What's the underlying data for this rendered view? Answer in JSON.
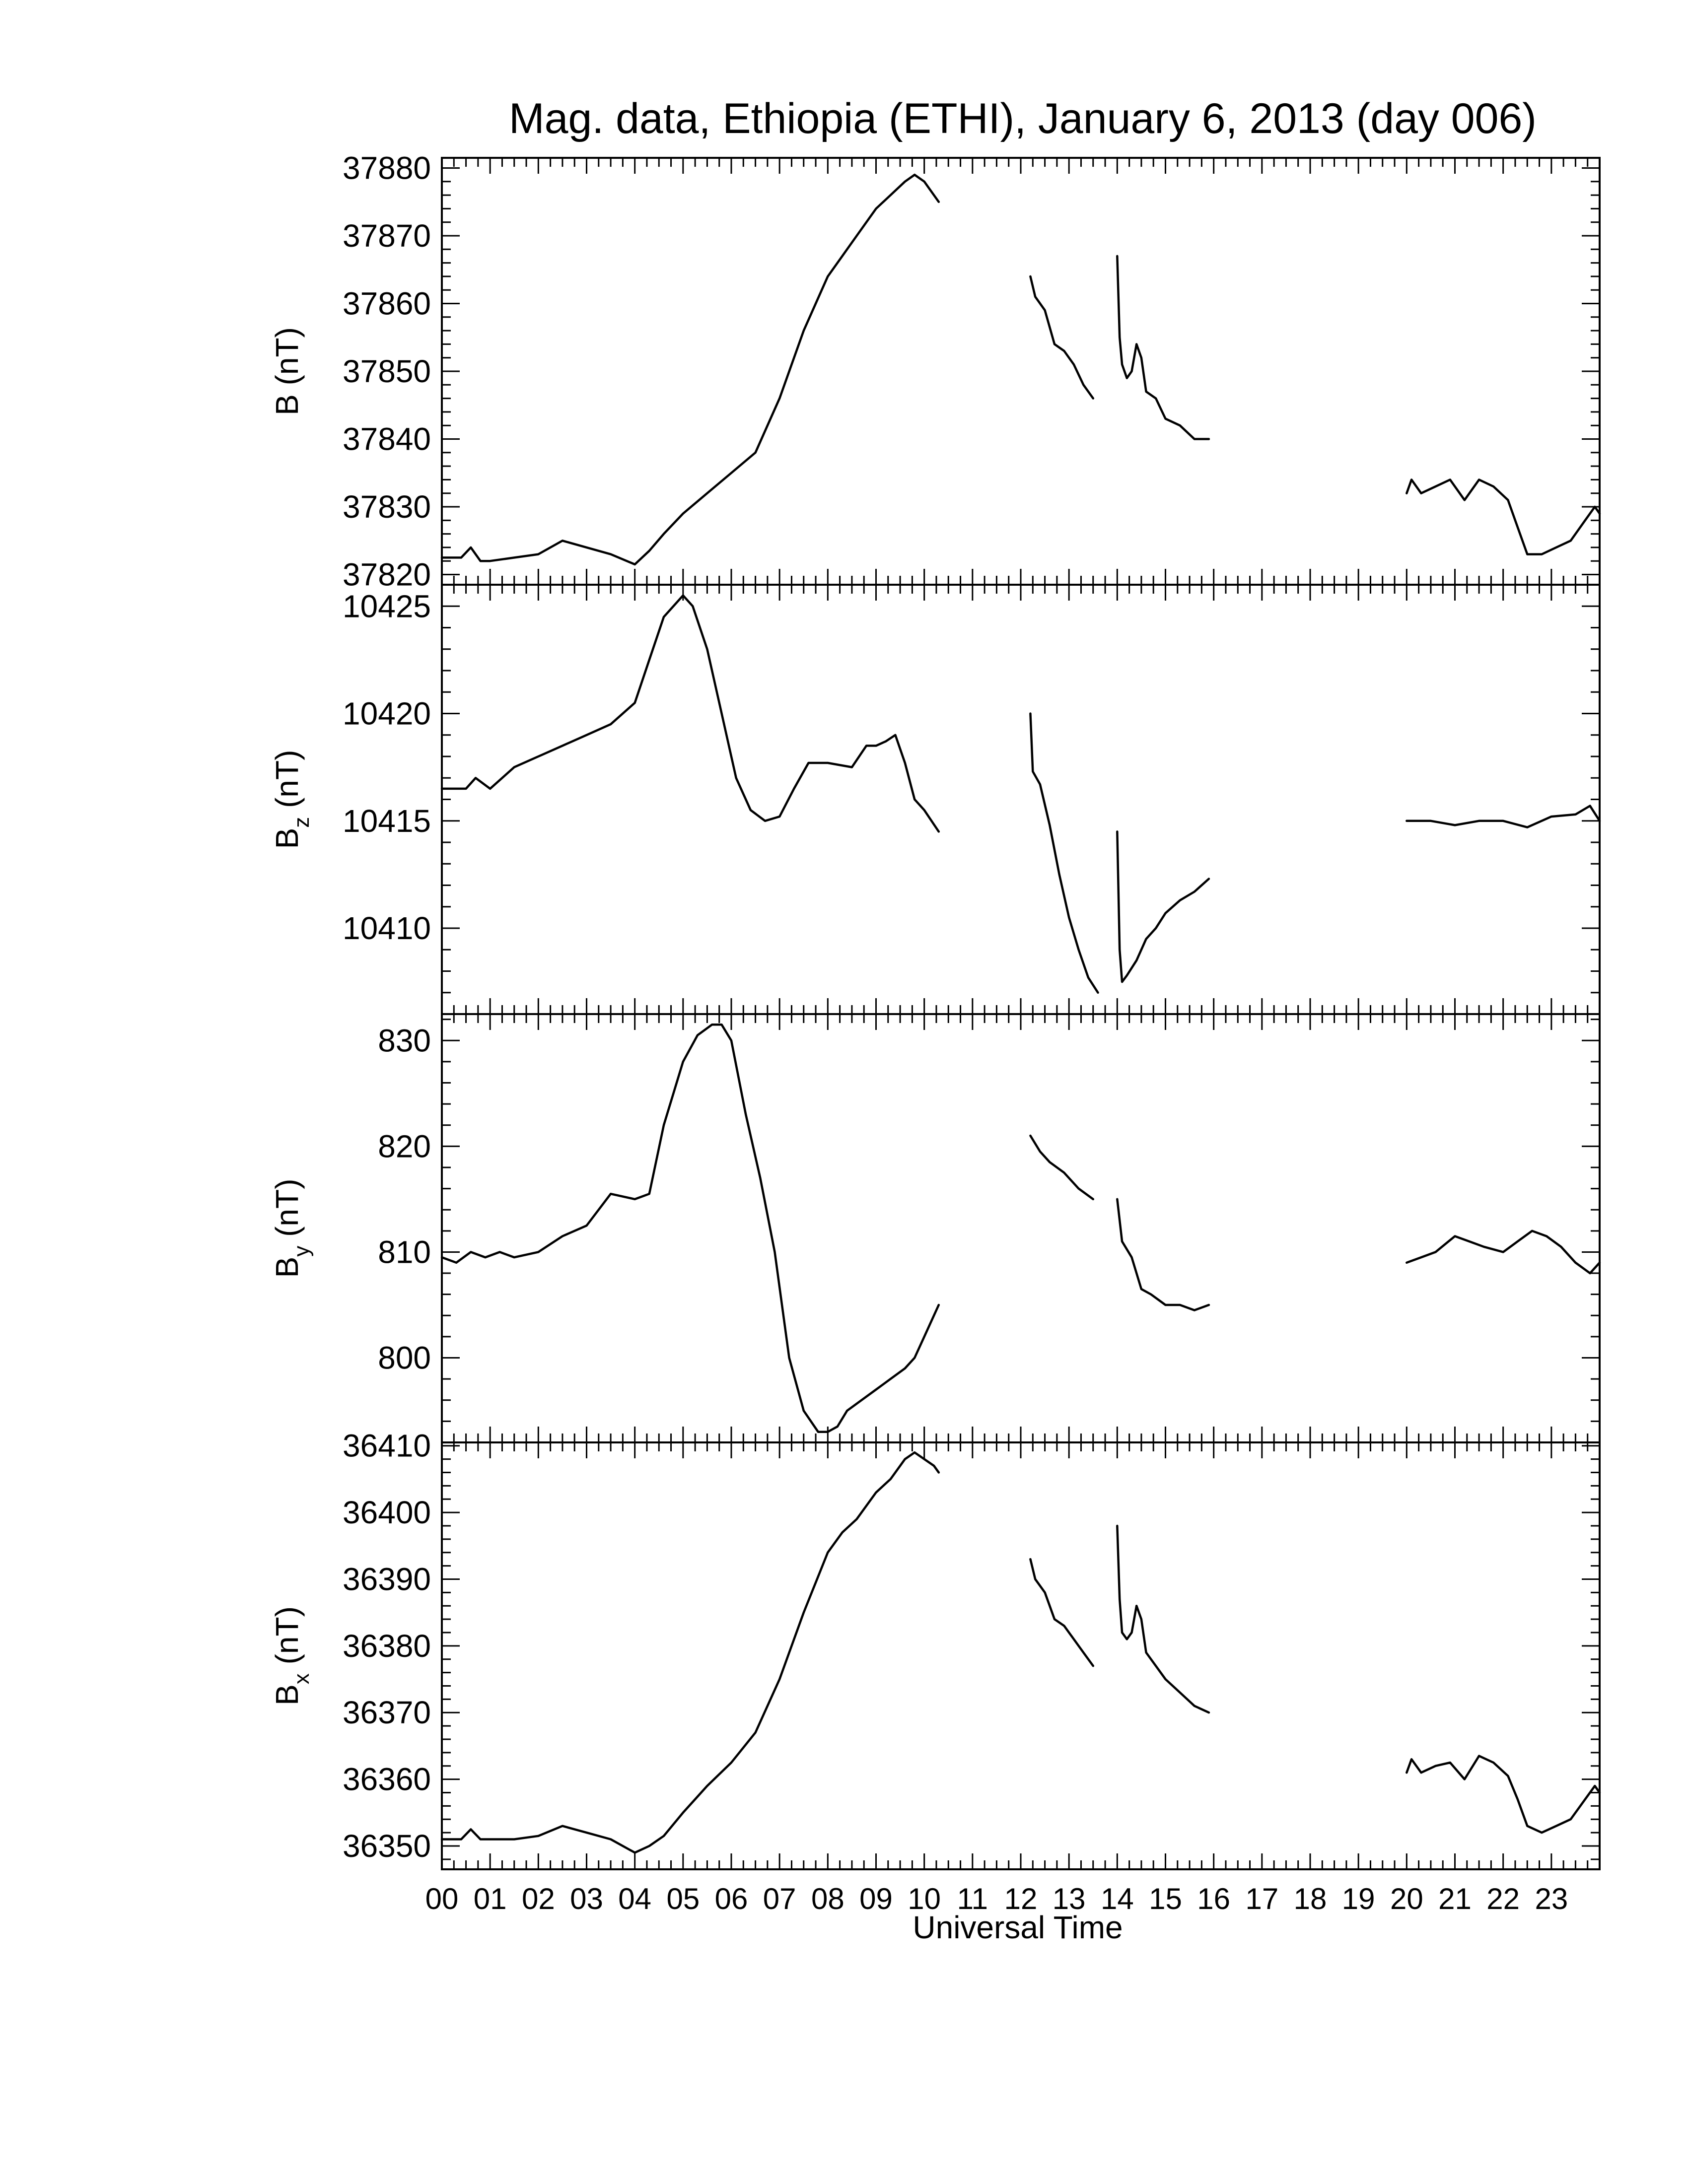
{
  "title": "Mag. data, Ethiopia (ETHI), January 6, 2013 (day 006)",
  "xlabel": "Universal Time",
  "xticks": [
    "00",
    "01",
    "02",
    "03",
    "04",
    "05",
    "06",
    "07",
    "08",
    "09",
    "10",
    "11",
    "12",
    "13",
    "14",
    "15",
    "16",
    "17",
    "18",
    "19",
    "20",
    "21",
    "22",
    "23"
  ],
  "line_color": "#000000",
  "chart_data": [
    {
      "type": "line",
      "ylabel": "B (nT)",
      "ylabel_sub": "",
      "xlim": [
        0,
        24
      ],
      "ylim": [
        37818.5,
        37881.5
      ],
      "yticks": [
        37820,
        37830,
        37840,
        37850,
        37860,
        37870,
        37880
      ],
      "segments": [
        {
          "x": [
            0,
            0.4,
            0.6,
            0.8,
            1.0,
            1.5,
            2.0,
            2.5,
            3.0,
            3.5,
            4.0,
            4.3,
            4.6,
            5.0,
            5.5,
            6.0,
            6.5,
            7.0,
            7.5,
            8.0,
            8.3,
            8.6,
            9.0,
            9.3,
            9.6,
            9.8,
            10.0,
            10.2,
            10.3
          ],
          "y": [
            37822.5,
            37822.5,
            37824,
            37822,
            37822,
            37822.5,
            37823,
            37825,
            37824,
            37823,
            37821.5,
            37823.5,
            37826,
            37829,
            37832,
            37835,
            37838,
            37846,
            37856,
            37864,
            37867,
            37870,
            37874,
            37876,
            37878,
            37879,
            37878,
            37876,
            37875
          ]
        },
        {
          "x": [
            12.2,
            12.3,
            12.5,
            12.7,
            12.9,
            13.1,
            13.3,
            13.5
          ],
          "y": [
            37864,
            37861,
            37859,
            37854,
            37853,
            37851,
            37848,
            37846
          ]
        },
        {
          "x": [
            14.0,
            14.05,
            14.1,
            14.2,
            14.3,
            14.4,
            14.5,
            14.6,
            14.8,
            15.0,
            15.3,
            15.6,
            15.9
          ],
          "y": [
            37867,
            37855,
            37851,
            37849,
            37850,
            37854,
            37852,
            37847,
            37846,
            37843,
            37842,
            37840,
            37840
          ]
        },
        {
          "x": [
            20.0,
            20.1,
            20.3,
            20.6,
            20.9,
            21.2,
            21.5,
            21.8,
            22.1,
            22.3,
            22.5,
            22.8,
            23.1,
            23.4,
            23.7,
            23.9,
            24.0
          ],
          "y": [
            37832,
            37834,
            37832,
            37833,
            37834,
            37831,
            37834,
            37833,
            37831,
            37827,
            37823,
            37823,
            37824,
            37825,
            37828,
            37830,
            37829
          ]
        }
      ]
    },
    {
      "type": "line",
      "ylabel": "B",
      "ylabel_sub": "z",
      "ylabel_unit": "(nT)",
      "xlim": [
        0,
        24
      ],
      "ylim": [
        10406,
        10426
      ],
      "yticks": [
        10410,
        10415,
        10420,
        10425
      ],
      "segments": [
        {
          "x": [
            0,
            0.5,
            0.7,
            1.0,
            1.5,
            2.0,
            2.5,
            3.0,
            3.5,
            4.0,
            4.3,
            4.6,
            5.0,
            5.2,
            5.5,
            5.8,
            6.1,
            6.4,
            6.7,
            7.0,
            7.3,
            7.6,
            8.0,
            8.5,
            8.8,
            9.0,
            9.2,
            9.4,
            9.6,
            9.8,
            10.0,
            10.3
          ],
          "y": [
            10416.5,
            10416.5,
            10417,
            10416.5,
            10417.5,
            10418,
            10418.5,
            10419,
            10419.5,
            10420.5,
            10422.5,
            10424.5,
            10425.5,
            10425,
            10423,
            10420,
            10417,
            10415.5,
            10415,
            10415.2,
            10416.5,
            10417.7,
            10417.7,
            10417.5,
            10418.5,
            10418.5,
            10418.7,
            10419,
            10417.7,
            10416,
            10415.5,
            10414.5
          ]
        },
        {
          "x": [
            12.2,
            12.25,
            12.4,
            12.6,
            12.8,
            13.0,
            13.2,
            13.4,
            13.6
          ],
          "y": [
            10420,
            10417.3,
            10416.7,
            10414.8,
            10412.5,
            10410.5,
            10409,
            10407.7,
            10407
          ]
        },
        {
          "x": [
            14.0,
            14.05,
            14.1,
            14.2,
            14.4,
            14.6,
            14.8,
            15.0,
            15.3,
            15.6,
            15.9
          ],
          "y": [
            10414.5,
            10409,
            10407.5,
            10407.8,
            10408.5,
            10409.5,
            10410,
            10410.7,
            10411.3,
            10411.7,
            10412.3
          ]
        },
        {
          "x": [
            20.0,
            20.5,
            21.0,
            21.5,
            22.0,
            22.5,
            23.0,
            23.5,
            23.8,
            24.0
          ],
          "y": [
            10415,
            10415,
            10414.8,
            10415,
            10415,
            10414.7,
            10415.2,
            10415.3,
            10415.7,
            10415
          ]
        }
      ]
    },
    {
      "type": "line",
      "ylabel": "B",
      "ylabel_sub": "y",
      "ylabel_unit": "(nT)",
      "xlim": [
        0,
        24
      ],
      "ylim": [
        792,
        832.5
      ],
      "yticks": [
        800,
        810,
        820,
        830
      ],
      "segments": [
        {
          "x": [
            0,
            0.3,
            0.6,
            0.9,
            1.2,
            1.5,
            2.0,
            2.5,
            3.0,
            3.5,
            4.0,
            4.3,
            4.6,
            5.0,
            5.3,
            5.6,
            5.8,
            6.0,
            6.3,
            6.6,
            6.9,
            7.2,
            7.5,
            7.8,
            8.0,
            8.2,
            8.4,
            8.7,
            9.0,
            9.3,
            9.6,
            9.8,
            10.0,
            10.3
          ],
          "y": [
            809.5,
            809,
            810,
            809.5,
            810,
            809.5,
            810,
            811.5,
            812.5,
            815.5,
            815,
            815.5,
            822,
            828,
            830.5,
            831.5,
            831.5,
            830,
            823,
            817,
            810,
            800,
            795,
            793,
            793,
            793.5,
            795,
            796,
            797,
            798,
            799,
            800,
            802,
            805
          ]
        },
        {
          "x": [
            12.2,
            12.4,
            12.6,
            12.9,
            13.2,
            13.5
          ],
          "y": [
            821,
            819.5,
            818.5,
            817.5,
            816,
            815
          ]
        },
        {
          "x": [
            14.0,
            14.1,
            14.3,
            14.5,
            14.7,
            15.0,
            15.3,
            15.6,
            15.9
          ],
          "y": [
            815,
            811,
            809.5,
            806.5,
            806,
            805,
            805,
            804.5,
            805
          ]
        },
        {
          "x": [
            20.0,
            20.3,
            20.6,
            21.0,
            21.3,
            21.6,
            22.0,
            22.3,
            22.6,
            22.9,
            23.2,
            23.5,
            23.8,
            24.0
          ],
          "y": [
            809,
            809.5,
            810,
            811.5,
            811,
            810.5,
            810,
            811,
            812,
            811.5,
            810.5,
            809,
            808,
            809
          ]
        }
      ]
    },
    {
      "type": "line",
      "ylabel": "B",
      "ylabel_sub": "x",
      "ylabel_unit": "(nT)",
      "xlim": [
        0,
        24
      ],
      "ylim": [
        36346.5,
        36410.5
      ],
      "yticks": [
        36350,
        36360,
        36370,
        36380,
        36390,
        36400,
        36410
      ],
      "segments": [
        {
          "x": [
            0,
            0.4,
            0.6,
            0.8,
            1.0,
            1.5,
            2.0,
            2.5,
            3.0,
            3.5,
            4.0,
            4.3,
            4.6,
            5.0,
            5.5,
            6.0,
            6.5,
            7.0,
            7.5,
            8.0,
            8.3,
            8.6,
            9.0,
            9.3,
            9.6,
            9.8,
            10.0,
            10.2,
            10.3
          ],
          "y": [
            36351,
            36351,
            36352.5,
            36351,
            36351,
            36351,
            36351.5,
            36353,
            36352,
            36351,
            36349,
            36350,
            36351.5,
            36355,
            36359,
            36362.5,
            36367,
            36375,
            36385,
            36394,
            36397,
            36399,
            36403,
            36405,
            36408,
            36409,
            36408,
            36407,
            36406
          ]
        },
        {
          "x": [
            12.2,
            12.3,
            12.5,
            12.7,
            12.9,
            13.1,
            13.3,
            13.5
          ],
          "y": [
            36393,
            36390,
            36388,
            36384,
            36383,
            36381,
            36379,
            36377
          ]
        },
        {
          "x": [
            14.0,
            14.05,
            14.1,
            14.2,
            14.3,
            14.4,
            14.5,
            14.6,
            14.8,
            15.0,
            15.3,
            15.6,
            15.9
          ],
          "y": [
            36398,
            36387,
            36382,
            36381,
            36382,
            36386,
            36384,
            36379,
            36377,
            36375,
            36373,
            36371,
            36370
          ]
        },
        {
          "x": [
            20.0,
            20.1,
            20.3,
            20.6,
            20.9,
            21.2,
            21.5,
            21.8,
            22.1,
            22.3,
            22.5,
            22.8,
            23.1,
            23.4,
            23.7,
            23.9,
            24.0
          ],
          "y": [
            36361,
            36363,
            36361,
            36362,
            36362.5,
            36360,
            36363.5,
            36362.5,
            36360.5,
            36357,
            36353,
            36352,
            36353,
            36354,
            36357,
            36359,
            36358
          ]
        }
      ]
    }
  ]
}
